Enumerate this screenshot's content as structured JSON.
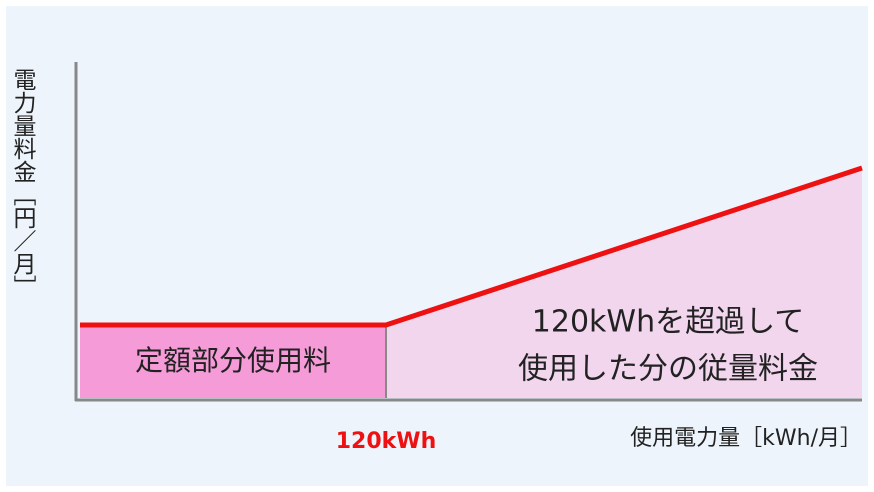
{
  "y_axis_label": "電力量料金［円／月］",
  "x_axis_label": "使用電力量［kWh/月］",
  "threshold_label": "120kWh",
  "fixed_region_label": "定額部分使用料",
  "variable_region_label": [
    "120kWhを超過して",
    "使用した分の従量料金"
  ]
}
